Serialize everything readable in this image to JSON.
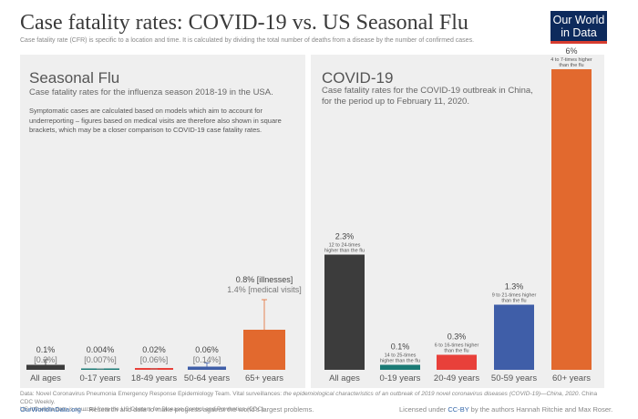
{
  "header": {
    "title": "Case fatality rates: COVID-19 vs. US Seasonal Flu",
    "subtitle": "Case fatality rate (CFR) is specific to a location and time. It is calculated by dividing the total number of deaths from a disease by the number of confirmed cases.",
    "logo_line1": "Our World",
    "logo_line2": "in Data",
    "logo_accent": "#d73c2f",
    "logo_bg": "#0d2a5c"
  },
  "left_panel": {
    "title": "Seasonal Flu",
    "subtitle": "Case fatality rates for the influenza season 2018-19 in the USA.",
    "note": "Symptomatic cases are calculated based on models which aim to account for underreporting – figures based on medical visits are therefore also shown in square brackets, which may be a closer comparison to COVID-19 case fatality rates."
  },
  "right_panel": {
    "title": "COVID-19",
    "subtitle_line1": "Case fatality rates for the COVID-19 outbreak in China,",
    "subtitle_line2": "for the period  up to February 11, 2020."
  },
  "chart_data": [
    {
      "type": "bar",
      "title": "Seasonal Flu",
      "categories": [
        "All ages",
        "0-17 years",
        "18-49 years",
        "50-64 years",
        "65+ years"
      ],
      "values": [
        0.1,
        0.004,
        0.02,
        0.06,
        0.8
      ],
      "medical_visit_values": [
        0.2,
        0.007,
        0.06,
        0.14,
        1.4
      ],
      "value_labels": [
        "0.1%",
        "0.004%",
        "0.02%",
        "0.06%",
        "0.8% [illnesses]"
      ],
      "medical_visit_labels": [
        "[0.2%]",
        "[0.007%]",
        "[0.06%]",
        "[0.14%]",
        "1.4% [medical visits]"
      ],
      "colors": [
        "#3c3c3c",
        "#1a7a75",
        "#e8403a",
        "#3f5ea8",
        "#e2692e"
      ],
      "ylim": [
        0,
        6
      ]
    },
    {
      "type": "bar",
      "title": "COVID-19",
      "categories": [
        "All ages",
        "0-19 years",
        "20-49 years",
        "50-59 years",
        "60+ years"
      ],
      "values": [
        2.3,
        0.1,
        0.3,
        1.3,
        6.0
      ],
      "value_labels": [
        "2.3%",
        "0.1%",
        "0.3%",
        "1.3%",
        "6%"
      ],
      "comparison_labels": [
        "12 to 24-times higher than the flu",
        "14 to 25-times higher than the flu",
        "6 to 16-times higher than the flu",
        "9 to 21-times higher than the flu",
        "4 to 7-times higher than the flu"
      ],
      "colors": [
        "#3c3c3c",
        "#1a7a75",
        "#e8403a",
        "#3f5ea8",
        "#e2692e"
      ],
      "ylim": [
        0,
        6
      ]
    }
  ],
  "footer": {
    "data_label": "Data:",
    "data_text_1": "Novel Coronavirus Pneumonia Emergency Response Epidemiology Team. Vital surveillances: ",
    "data_text_italic": "the epidemiological characteristics of an outbreak of 2019 novel coronavirus diseases (COVID-19)—China, 2020",
    "data_text_2": ". China CDC Weekly.",
    "data_text_3": "US Influenza data is sourced from the US Centers for Disease Control and Prevention (CDC).",
    "link_text": "OurWorldInData.org",
    "link_tagline": " – Research and data to make progress against the world's largest problems.",
    "license_prefix": "Licensed under ",
    "license_link": "CC-BY",
    "license_suffix": " by the authors Hannah Ritchie and Max Roser."
  }
}
